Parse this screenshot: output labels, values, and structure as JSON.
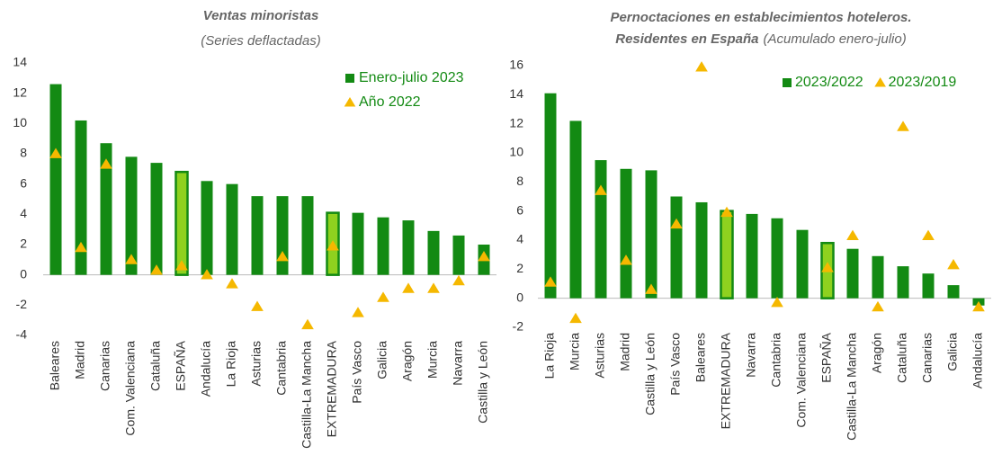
{
  "chart_data": [
    {
      "type": "bar",
      "title": "Ventas minoristas",
      "subtitle": "(Series deflactadas)",
      "categories": [
        "Baleares",
        "Madrid",
        "Canarias",
        "Com. Valenciana",
        "Cataluña",
        "ESPAÑA",
        "Andalucía",
        "La Rioja",
        "Asturias",
        "Cantabria",
        "Castilla-La Mancha",
        "EXTREMADURA",
        "País Vasco",
        "Galicia",
        "Aragón",
        "Murcia",
        "Navarra",
        "Castilla y León"
      ],
      "series": [
        {
          "name": "Enero-julio 2023",
          "kind": "bar",
          "color": "#138a13",
          "highlight_color": "#8fd11f",
          "highlight": [
            5,
            11
          ],
          "values": [
            12.6,
            10.2,
            8.7,
            7.8,
            7.4,
            6.8,
            6.2,
            6.0,
            5.2,
            5.2,
            5.2,
            4.1,
            4.1,
            3.8,
            3.6,
            2.9,
            2.6,
            2.0
          ]
        },
        {
          "name": "Año 2022",
          "kind": "triangle",
          "color": "#f5b800",
          "values": [
            8.0,
            1.8,
            7.3,
            1.0,
            0.3,
            0.6,
            0.0,
            -0.6,
            -2.1,
            1.2,
            -3.3,
            1.9,
            -2.5,
            -1.5,
            -0.9,
            -0.9,
            -0.4,
            1.2
          ]
        }
      ],
      "ylim": [
        -4,
        14
      ],
      "yticks": [
        -4,
        -2,
        0,
        2,
        4,
        6,
        8,
        10,
        12,
        14
      ],
      "legend": "upper right",
      "legend_layout": "vertical"
    },
    {
      "type": "bar",
      "title": "Pernoctaciones en establecimientos hoteleros.",
      "title2": "Residentes en España",
      "subtitle": "(Acumulado enero-julio)",
      "categories": [
        "La Rioja",
        "Murcia",
        "Asturias",
        "Madrid",
        "Castilla y León",
        "País Vasco",
        "Baleares",
        "EXTREMADURA",
        "Navarra",
        "Cantabria",
        "Com. Valenciana",
        "ESPAÑA",
        "Castilla-La Mancha",
        "Aragón",
        "Cataluña",
        "Canarias",
        "Galicia",
        "Andalucía"
      ],
      "series": [
        {
          "name": "2023/2022",
          "kind": "bar",
          "color": "#138a13",
          "highlight_color": "#8fd11f",
          "highlight": [
            7,
            11
          ],
          "values": [
            14.1,
            12.2,
            9.5,
            8.9,
            8.8,
            7.0,
            6.6,
            6.0,
            5.8,
            5.5,
            4.7,
            3.8,
            3.4,
            2.9,
            2.2,
            1.7,
            0.9,
            -0.5
          ]
        },
        {
          "name": "2023/2019",
          "kind": "triangle",
          "color": "#f5b800",
          "values": [
            1.1,
            -1.4,
            7.4,
            2.6,
            0.6,
            5.1,
            15.9,
            5.9,
            null,
            -0.3,
            null,
            2.1,
            4.3,
            -0.6,
            11.8,
            4.3,
            2.3,
            -0.6
          ]
        }
      ],
      "ylim": [
        -2,
        16
      ],
      "yticks": [
        -2,
        0,
        2,
        4,
        6,
        8,
        10,
        12,
        14,
        16
      ],
      "legend": "upper right",
      "legend_layout": "horizontal"
    }
  ]
}
